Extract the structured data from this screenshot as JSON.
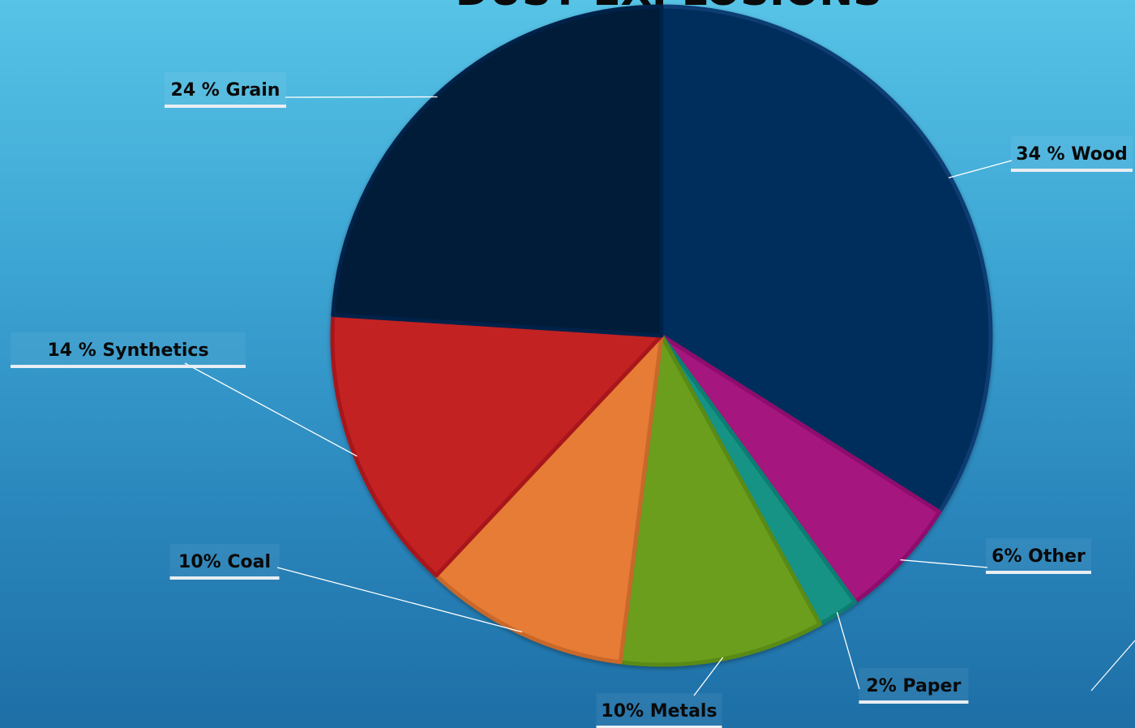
{
  "chart_data": {
    "type": "pie",
    "title": "DUST EXPLOSIONS",
    "slices": [
      {
        "label": "34 % Wood",
        "value": 34,
        "color": "#052d5c",
        "edge": "#0b3d73"
      },
      {
        "label": "6% Other",
        "value": 6,
        "color": "#a5137e",
        "edge": "#8e0f6c"
      },
      {
        "label": "2% Paper",
        "value": 2,
        "color": "#159385",
        "edge": "#0f7d71"
      },
      {
        "label": "10% Metals",
        "value": 10,
        "color": "#6b9e1e",
        "edge": "#5a8a14"
      },
      {
        "label": "10% Coal",
        "value": 10,
        "color": "#e67c35",
        "edge": "#c9682a"
      },
      {
        "label": "14 % Synthetics",
        "value": 14,
        "color": "#c32022",
        "edge": "#a8181a"
      },
      {
        "label": "24 % Grain",
        "value": 24,
        "color": "#041b38",
        "edge": "#06234a"
      }
    ],
    "legend": "none"
  }
}
